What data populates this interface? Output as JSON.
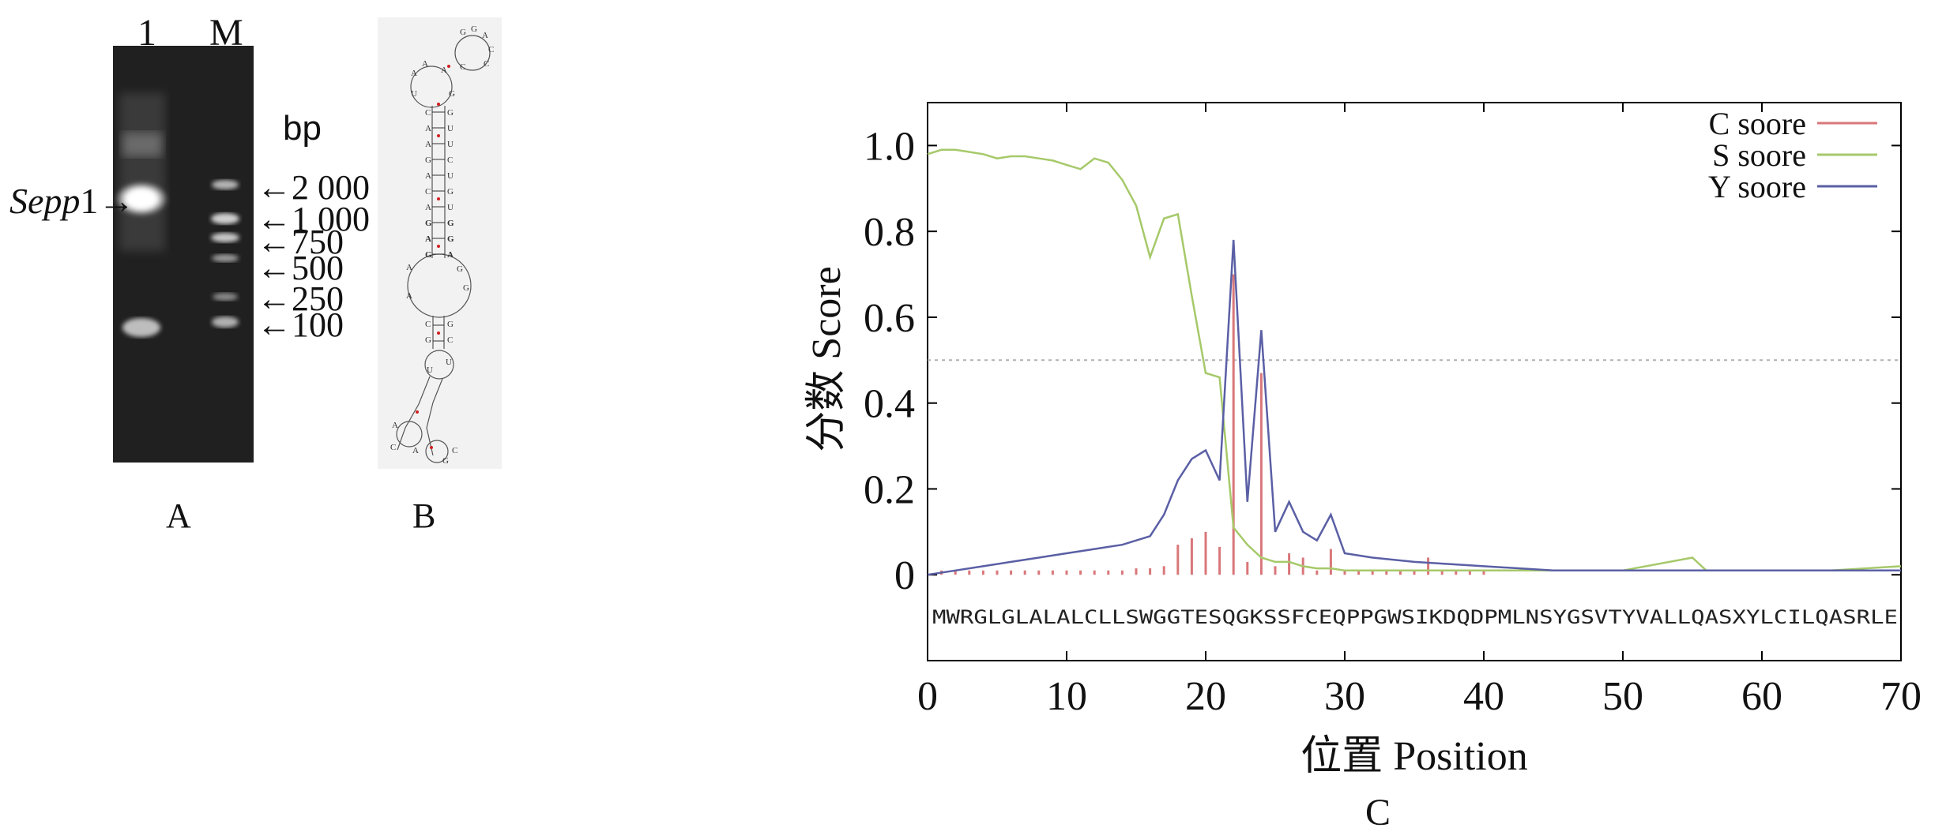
{
  "panelA": {
    "lane_labels": [
      "1",
      "M"
    ],
    "unit": "bp",
    "gene_label_italic": "Sepp",
    "gene_label_suffix": "1",
    "ladder": [
      "2 000",
      "1 000",
      "750",
      "500",
      "250",
      "100"
    ],
    "caption": "A"
  },
  "panelB": {
    "caption": "B"
  },
  "panelC": {
    "caption": "C",
    "sequence": "MWRGLGLALALCLLSWGGTESQGKSSFCEQPPGWSIKDQDPMLNSYGSVTYVALLQASXYLCILQASRLE"
  },
  "chart_data": {
    "type": "line",
    "xlabel": "位置 Position",
    "ylabel": "分数 Score",
    "xlim": [
      0,
      70
    ],
    "ylim": [
      -0.2,
      1.1
    ],
    "xticks": [
      0,
      10,
      20,
      30,
      40,
      50,
      60,
      70
    ],
    "xtick_labels": [
      "0",
      "10",
      "20",
      "30",
      "40",
      "50",
      "60",
      "70"
    ],
    "yticks": [
      0,
      0.2,
      0.4,
      0.6,
      0.8,
      1.0
    ],
    "ytick_labels": [
      "0",
      "0.2",
      "0.4",
      "0.6",
      "0.8",
      "1.0"
    ],
    "threshold": 0.5,
    "legend_placement": "top-right",
    "series": [
      {
        "name": "C soore",
        "kind": "bars",
        "color": "#d9777a",
        "x": [
          1,
          2,
          3,
          4,
          5,
          6,
          7,
          8,
          9,
          10,
          11,
          12,
          13,
          14,
          15,
          16,
          17,
          18,
          19,
          20,
          21,
          22,
          23,
          24,
          25,
          26,
          27,
          28,
          29,
          30,
          31,
          32,
          33,
          34,
          35,
          36,
          37,
          38,
          39,
          40
        ],
        "values": [
          0.01,
          0.01,
          0.01,
          0.01,
          0.01,
          0.01,
          0.01,
          0.01,
          0.01,
          0.01,
          0.01,
          0.01,
          0.01,
          0.01,
          0.015,
          0.015,
          0.02,
          0.07,
          0.085,
          0.1,
          0.065,
          0.7,
          0.03,
          0.47,
          0.02,
          0.05,
          0.04,
          0.01,
          0.06,
          0.01,
          0.01,
          0.01,
          0.01,
          0.01,
          0.01,
          0.04,
          0.01,
          0.01,
          0.01,
          0.01
        ]
      },
      {
        "name": "S soore",
        "kind": "line",
        "color": "#a6c96a",
        "x": [
          0,
          1,
          2,
          3,
          4,
          5,
          6,
          7,
          8,
          9,
          10,
          11,
          12,
          13,
          14,
          15,
          16,
          17,
          18,
          19,
          20,
          21,
          22,
          23,
          24,
          25,
          26,
          27,
          28,
          29,
          30,
          35,
          40,
          45,
          50,
          55,
          56,
          60,
          65,
          70
        ],
        "values": [
          0.98,
          0.99,
          0.99,
          0.985,
          0.98,
          0.97,
          0.975,
          0.975,
          0.97,
          0.965,
          0.955,
          0.945,
          0.97,
          0.96,
          0.92,
          0.86,
          0.74,
          0.83,
          0.84,
          0.65,
          0.47,
          0.46,
          0.11,
          0.07,
          0.04,
          0.03,
          0.03,
          0.02,
          0.015,
          0.015,
          0.01,
          0.01,
          0.01,
          0.01,
          0.01,
          0.04,
          0.01,
          0.01,
          0.01,
          0.02
        ]
      },
      {
        "name": "Y soore",
        "kind": "line",
        "color": "#5a5fa5",
        "x": [
          0,
          2,
          4,
          6,
          8,
          10,
          12,
          14,
          16,
          17,
          18,
          19,
          20,
          21,
          22,
          23,
          24,
          25,
          26,
          27,
          28,
          29,
          30,
          32,
          35,
          40,
          45,
          50,
          55,
          60,
          65,
          70
        ],
        "values": [
          0.0,
          0.01,
          0.02,
          0.03,
          0.04,
          0.05,
          0.06,
          0.07,
          0.09,
          0.14,
          0.22,
          0.27,
          0.29,
          0.22,
          0.78,
          0.17,
          0.57,
          0.1,
          0.17,
          0.1,
          0.08,
          0.14,
          0.05,
          0.04,
          0.03,
          0.02,
          0.01,
          0.01,
          0.01,
          0.01,
          0.01,
          0.01
        ]
      }
    ]
  }
}
